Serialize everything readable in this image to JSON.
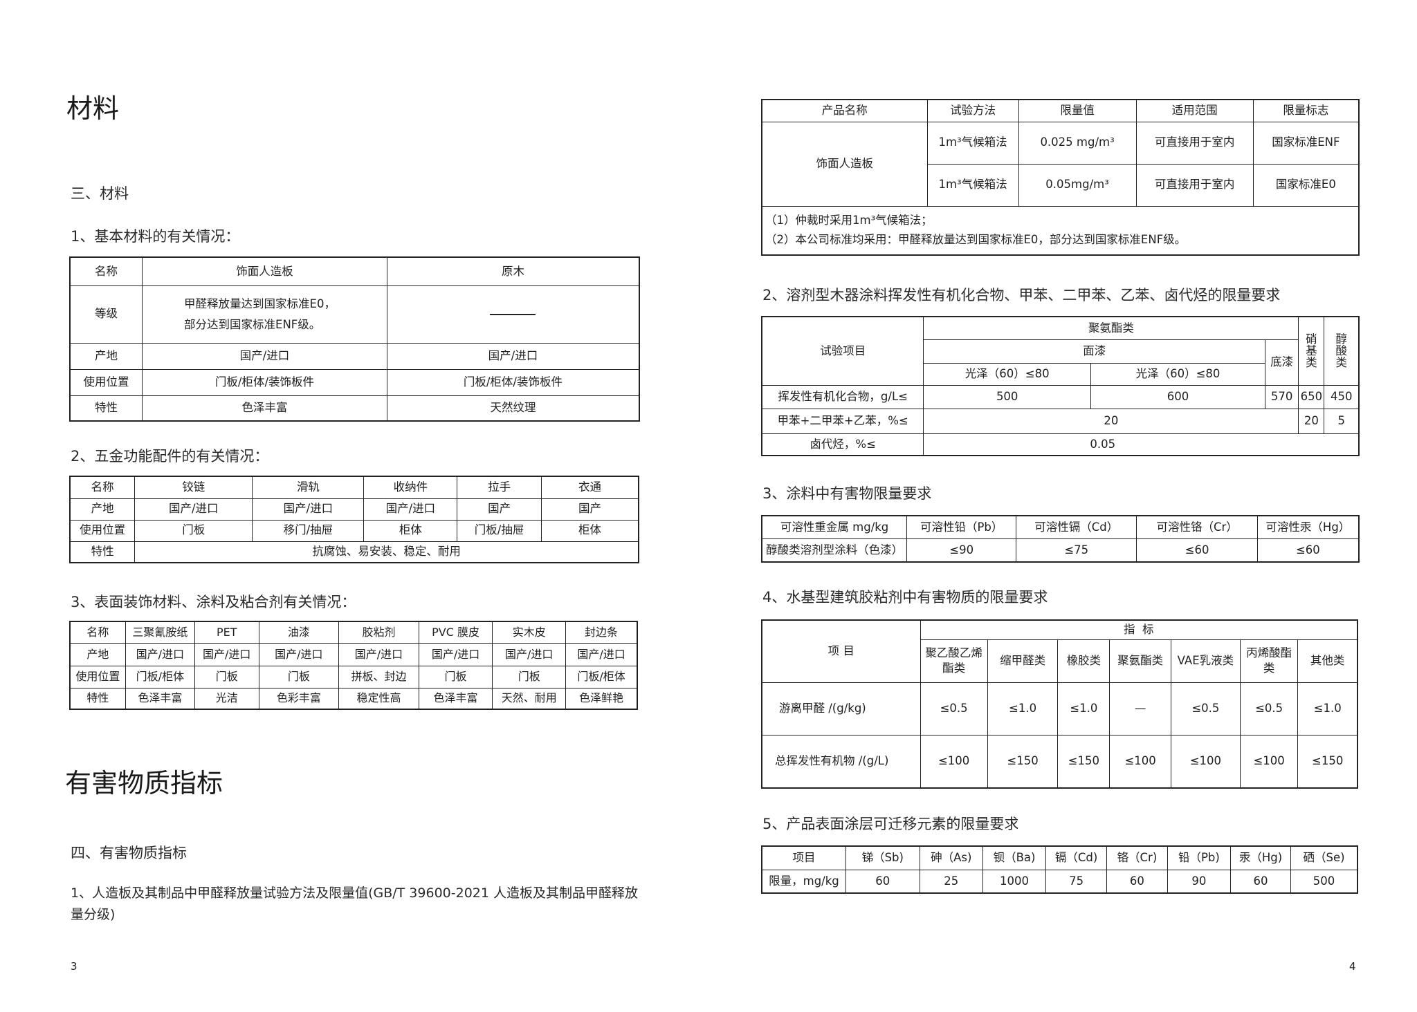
{
  "left": {
    "title": "材料",
    "section3": "三、材料",
    "t1_caption": "1、基本材料的有关情况：",
    "t1": {
      "header": [
        "名称",
        "饰面人造板",
        "原木"
      ],
      "grade_label": "等级",
      "grade_line1": "甲醛释放量达到国家标准E0，",
      "grade_line2": "部分达到国家标准ENF级。",
      "rows": [
        [
          "产地",
          "国产/进口",
          "国产/进口"
        ],
        [
          "使用位置",
          "门板/柜体/装饰板件",
          "门板/柜体/装饰板件"
        ],
        [
          "特性",
          "色泽丰富",
          "天然纹理"
        ]
      ]
    },
    "t2_caption": "2、五金功能配件的有关情况：",
    "t2": {
      "rows": [
        [
          "名称",
          "铰链",
          "滑轨",
          "收纳件",
          "拉手",
          "衣通"
        ],
        [
          "产地",
          "国产/进口",
          "国产/进口",
          "国产/进口",
          "国产",
          "国产"
        ],
        [
          "使用位置",
          "门板",
          "移门/抽屉",
          "柜体",
          "门板/抽屉",
          "柜体"
        ]
      ],
      "feature_label": "特性",
      "feature_value": "抗腐蚀、易安装、稳定、耐用"
    },
    "t3_caption": "3、表面装饰材料、涂料及粘合剂有关情况：",
    "t3": {
      "rows": [
        [
          "名称",
          "三聚氰胺纸",
          "PET",
          "油漆",
          "胶粘剂",
          "PVC 膜皮",
          "实木皮",
          "封边条"
        ],
        [
          "产地",
          "国产/进口",
          "国产/进口",
          "国产/进口",
          "国产/进口",
          "国产/进口",
          "国产/进口",
          "国产/进口"
        ],
        [
          "使用位置",
          "门板/柜体",
          "门板",
          "门板",
          "拼板、封边",
          "门板",
          "门板",
          "门板/柜体"
        ],
        [
          "特性",
          "色泽丰富",
          "光洁",
          "色彩丰富",
          "稳定性高",
          "色泽丰富",
          "天然、耐用",
          "色泽鲜艳"
        ]
      ]
    },
    "title2": "有害物质指标",
    "section4": "四、有害物质指标",
    "para1_line1": "1、人造板及其制品中甲醛释放量试验方法及限量值(GB/T 39600-2021  人造板及其制品甲醛释放",
    "para1_line2": "量分级)",
    "page_number": "3"
  },
  "right": {
    "tA": {
      "header": [
        "产品名称",
        "试验方法",
        "限量值",
        "适用范围",
        "限量标志"
      ],
      "product": "饰面人造板",
      "rows": [
        [
          "1m³气候箱法",
          "0.025 mg/m³",
          "可直接用于室内",
          "国家标准ENF"
        ],
        [
          "1m³气候箱法",
          "0.05mg/m³",
          "可直接用于室内",
          "国家标准E0"
        ]
      ],
      "note1": "（1）仲裁时采用1m³气候箱法；",
      "note2": "（2）本公司标准均采用：甲醛释放量达到国家标准E0，部分达到国家标准ENF级。"
    },
    "tB_caption": "2、溶剂型木器涂料挥发性有机化合物、甲苯、二甲苯、乙苯、卤代烃的限量要求",
    "tB": {
      "item": "试验项目",
      "pu": "聚氨酯类",
      "nitro": "硝基类",
      "alkyd": "醇酸类",
      "topcoat": "面漆",
      "primer": "底漆",
      "gloss1": "光泽（60）≤80",
      "gloss2": "光泽（60）≤80",
      "voc": [
        "挥发性有机化合物，g/L≤",
        "500",
        "600",
        "570",
        "650",
        "450"
      ],
      "benzene": [
        "甲苯+二甲苯+乙苯，%≤",
        "20",
        "20",
        "5"
      ],
      "halo": [
        "卤代烃，%≤",
        "0.05"
      ]
    },
    "tC_caption": "3、涂料中有害物限量要求",
    "tC": {
      "header": [
        "可溶性重金属 mg/kg",
        "可溶性铅（Pb）",
        "可溶性镉（Cd）",
        "可溶性铬（Cr）",
        "可溶性汞（Hg）"
      ],
      "row": [
        "醇酸类溶剂型涂料（色漆）",
        "≤90",
        "≤75",
        "≤60",
        "≤60"
      ]
    },
    "tD_caption": "4、水基型建筑胶粘剂中有害物质的限量要求",
    "tD": {
      "item": "项 目",
      "index": "指  标",
      "cols": [
        "聚乙酸乙烯酯类",
        "缩甲醛类",
        "橡胶类",
        "聚氨酯类",
        "VAE乳液类",
        "丙烯酸酯类",
        "其他类"
      ],
      "rows": [
        [
          "游离甲醛 /(g/kg)",
          "≤0.5",
          "≤1.0",
          "≤1.0",
          "—",
          "≤0.5",
          "≤0.5",
          "≤1.0"
        ],
        [
          "总挥发性有机物 /(g/L)",
          "≤100",
          "≤150",
          "≤150",
          "≤100",
          "≤100",
          "≤100",
          "≤150"
        ]
      ]
    },
    "tE_caption": "5、产品表面涂层可迁移元素的限量要求",
    "tE": {
      "header": [
        "项目",
        "锑（Sb)",
        "砷（As)",
        "钡（Ba)",
        "镉（Cd)",
        "铬（Cr)",
        "铅（Pb)",
        "汞（Hg)",
        "硒（Se)"
      ],
      "row": [
        "限量，mg/kg",
        "60",
        "25",
        "1000",
        "75",
        "60",
        "90",
        "60",
        "500"
      ]
    },
    "page_number": "4"
  }
}
